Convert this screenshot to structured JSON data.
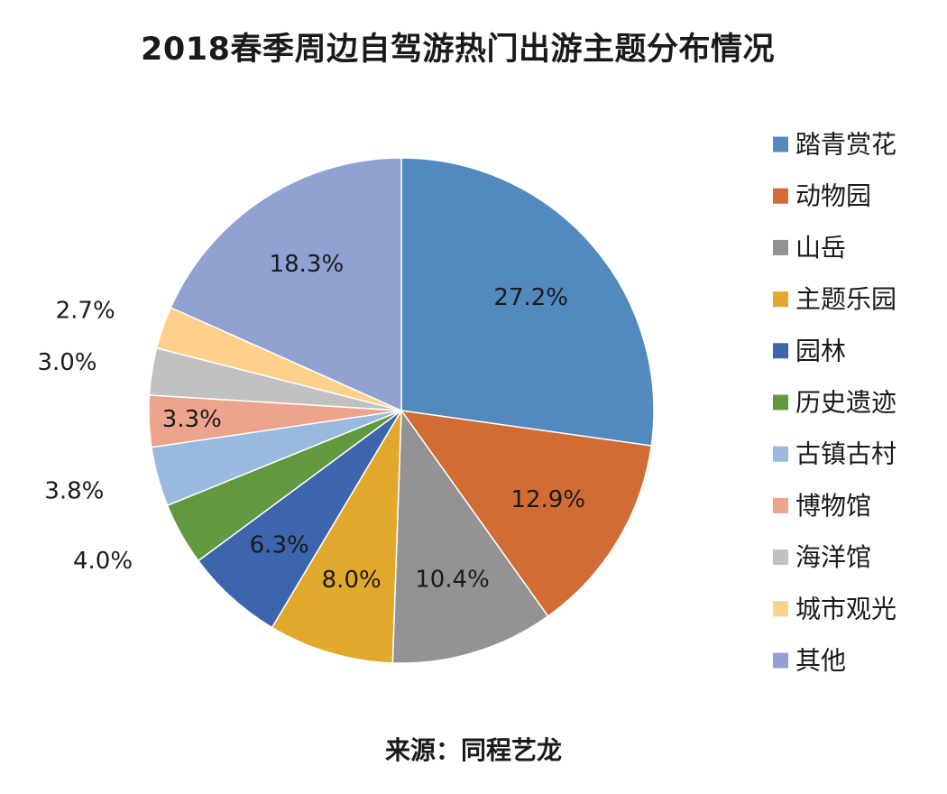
{
  "chart_data": {
    "type": "pie",
    "title": "2018春季周边自驾游热门出游主题分布情况",
    "source": "来源：同程艺龙",
    "unit": "%",
    "legend_position": "right",
    "slices": [
      {
        "name": "踏青赏花",
        "value": 27.2,
        "label": "27.2%",
        "color": "#5289be"
      },
      {
        "name": "动物园",
        "value": 12.9,
        "label": "12.9%",
        "color": "#d26c35"
      },
      {
        "name": "山岳",
        "value": 10.4,
        "label": "10.4%",
        "color": "#939393"
      },
      {
        "name": "主题乐园",
        "value": 8.0,
        "label": "8.0%",
        "color": "#e2a82b"
      },
      {
        "name": "园林",
        "value": 6.3,
        "label": "6.3%",
        "color": "#3c65ae"
      },
      {
        "name": "历史遗迹",
        "value": 4.0,
        "label": "4.0%",
        "color": "#62983f"
      },
      {
        "name": "古镇古村",
        "value": 3.8,
        "label": "3.8%",
        "color": "#99b9de"
      },
      {
        "name": "博物馆",
        "value": 3.3,
        "label": "3.3%",
        "color": "#eda48c"
      },
      {
        "name": "海洋馆",
        "value": 3.0,
        "label": "3.0%",
        "color": "#c1c1c1"
      },
      {
        "name": "城市观光",
        "value": 2.7,
        "label": "2.7%",
        "color": "#fdd08c"
      },
      {
        "name": "其他",
        "value": 18.3,
        "label": "18.3%",
        "color": "#8fa2d2"
      }
    ]
  }
}
